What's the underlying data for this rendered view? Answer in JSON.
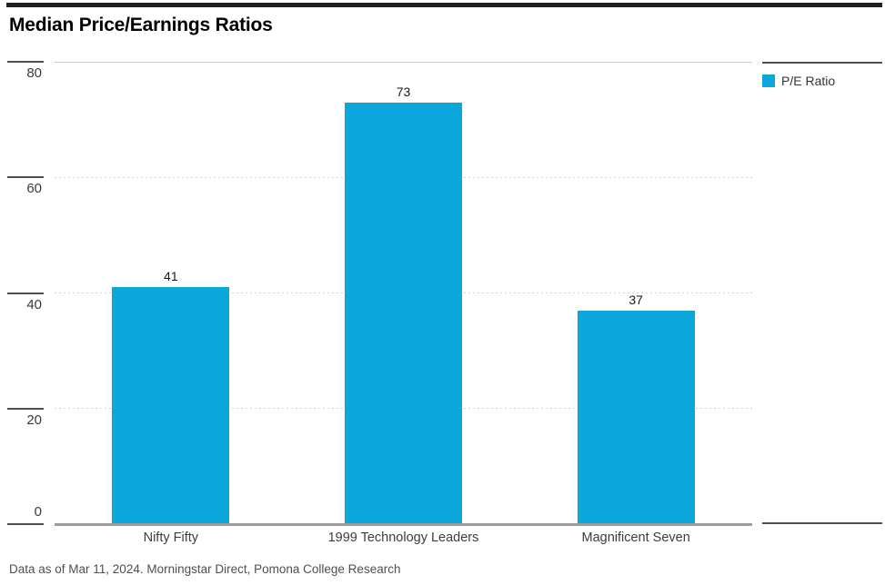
{
  "title": "Median Price/Earnings Ratios",
  "legend": {
    "label": "P/E Ratio",
    "color": "#0aa6dc"
  },
  "footer": "Data as of Mar 11, 2024. Morningstar Direct, Pomona College Research",
  "chart_data": {
    "type": "bar",
    "title": "Median Price/Earnings Ratios",
    "categories": [
      "Nifty Fifty",
      "1999 Technology Leaders",
      "Magnificent Seven"
    ],
    "series": [
      {
        "name": "P/E Ratio",
        "values": [
          41,
          73,
          37
        ]
      }
    ],
    "xlabel": "",
    "ylabel": "",
    "ylim": [
      0,
      80
    ],
    "yticks": [
      0,
      20,
      40,
      60,
      80
    ],
    "bar_color": "#0aa6dc",
    "grid": "horizontal-dotted",
    "legend_position": "top-right",
    "value_labels": true,
    "annotation": "Data as of Mar 11, 2024. Morningstar Direct, Pomona College Research"
  }
}
